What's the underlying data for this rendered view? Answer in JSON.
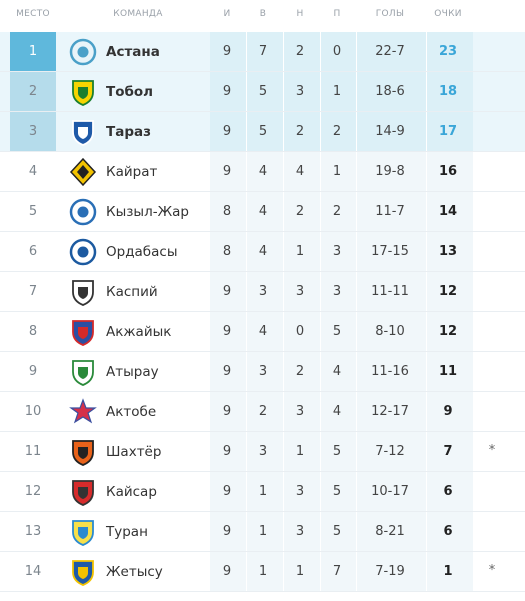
{
  "headers": {
    "place": "МЕСТО",
    "team": "КОМАНДА",
    "played": "И",
    "won": "В",
    "drawn": "Н",
    "lost": "П",
    "goals": "ГОЛЫ",
    "points": "ОЧКИ"
  },
  "rows": [
    {
      "place": "1",
      "team": "Астана",
      "played": "9",
      "won": "7",
      "drawn": "2",
      "lost": "0",
      "goals": "22-7",
      "points": "23",
      "note": "",
      "logo": "astana-logo"
    },
    {
      "place": "2",
      "team": "Тобол",
      "played": "9",
      "won": "5",
      "drawn": "3",
      "lost": "1",
      "goals": "18-6",
      "points": "18",
      "note": "",
      "logo": "tobol-logo"
    },
    {
      "place": "3",
      "team": "Тараз",
      "played": "9",
      "won": "5",
      "drawn": "2",
      "lost": "2",
      "goals": "14-9",
      "points": "17",
      "note": "",
      "logo": "taraz-logo"
    },
    {
      "place": "4",
      "team": "Кайрат",
      "played": "9",
      "won": "4",
      "drawn": "4",
      "lost": "1",
      "goals": "19-8",
      "points": "16",
      "note": "",
      "logo": "kairat-logo"
    },
    {
      "place": "5",
      "team": "Кызыл-Жар",
      "played": "8",
      "won": "4",
      "drawn": "2",
      "lost": "2",
      "goals": "11-7",
      "points": "14",
      "note": "",
      "logo": "kyzyl-zhar-logo"
    },
    {
      "place": "6",
      "team": "Ордабасы",
      "played": "8",
      "won": "4",
      "drawn": "1",
      "lost": "3",
      "goals": "17-15",
      "points": "13",
      "note": "",
      "logo": "ordabasy-logo"
    },
    {
      "place": "7",
      "team": "Каспий",
      "played": "9",
      "won": "3",
      "drawn": "3",
      "lost": "3",
      "goals": "11-11",
      "points": "12",
      "note": "",
      "logo": "kaspiy-logo"
    },
    {
      "place": "8",
      "team": "Акжайык",
      "played": "9",
      "won": "4",
      "drawn": "0",
      "lost": "5",
      "goals": "8-10",
      "points": "12",
      "note": "",
      "logo": "akzhaiyk-logo"
    },
    {
      "place": "9",
      "team": "Атырау",
      "played": "9",
      "won": "3",
      "drawn": "2",
      "lost": "4",
      "goals": "11-16",
      "points": "11",
      "note": "",
      "logo": "atyrau-logo"
    },
    {
      "place": "10",
      "team": "Актобе",
      "played": "9",
      "won": "2",
      "drawn": "3",
      "lost": "4",
      "goals": "12-17",
      "points": "9",
      "note": "",
      "logo": "aktobe-logo"
    },
    {
      "place": "11",
      "team": "Шахтёр",
      "played": "9",
      "won": "3",
      "drawn": "1",
      "lost": "5",
      "goals": "7-12",
      "points": "7",
      "note": "*",
      "logo": "shakhter-logo"
    },
    {
      "place": "12",
      "team": "Кайсар",
      "played": "9",
      "won": "1",
      "drawn": "3",
      "lost": "5",
      "goals": "10-17",
      "points": "6",
      "note": "",
      "logo": "kaisar-logo"
    },
    {
      "place": "13",
      "team": "Туран",
      "played": "9",
      "won": "1",
      "drawn": "3",
      "lost": "5",
      "goals": "8-21",
      "points": "6",
      "note": "",
      "logo": "turan-logo"
    },
    {
      "place": "14",
      "team": "Жетысу",
      "played": "9",
      "won": "1",
      "drawn": "1",
      "lost": "7",
      "goals": "7-19",
      "points": "1",
      "note": "*",
      "logo": "zhetysu-logo"
    }
  ],
  "colors": {
    "first_place_bg": "#5fb8dc",
    "top_place_bg": "#b5dceb",
    "top_row_bg": "#eaf6fb",
    "top_points": "#3aa6d8"
  }
}
